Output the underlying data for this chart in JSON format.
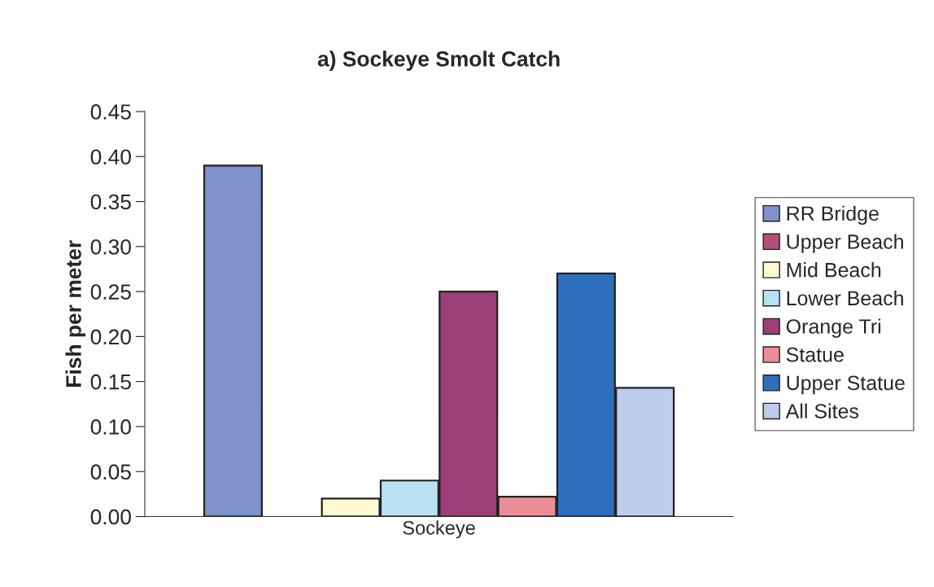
{
  "chart_data": {
    "type": "bar",
    "title": "a) Sockeye Smolt Catch",
    "ylabel": "Fish per meter",
    "categories": [
      "Sockeye"
    ],
    "series": [
      {
        "name": "RR Bridge",
        "color": "#7f92cc",
        "values": [
          0.39
        ]
      },
      {
        "name": "Upper Beach",
        "color": "#b24f7a",
        "values": [
          0
        ]
      },
      {
        "name": "Mid Beach",
        "color": "#fbf8d2",
        "values": [
          0.02
        ]
      },
      {
        "name": "Lower Beach",
        "color": "#b8e1f3",
        "values": [
          0.04
        ]
      },
      {
        "name": "Orange Tri",
        "color": "#9c3f78",
        "values": [
          0.25
        ]
      },
      {
        "name": "Statue",
        "color": "#ec8e97",
        "values": [
          0.022
        ]
      },
      {
        "name": "Upper Statue",
        "color": "#2d6fbd",
        "values": [
          0.27
        ]
      },
      {
        "name": "All Sites",
        "color": "#bfcdec",
        "values": [
          0.143
        ]
      }
    ],
    "ylim": [
      0,
      0.45
    ],
    "yticks": [
      {
        "value": 0,
        "label": "0.00"
      },
      {
        "value": 0.05,
        "label": "0.05"
      },
      {
        "value": 0.1,
        "label": "0.10"
      },
      {
        "value": 0.15,
        "label": "0.15"
      },
      {
        "value": 0.2,
        "label": "0.20"
      },
      {
        "value": 0.25,
        "label": "0.25"
      },
      {
        "value": 0.3,
        "label": "0.30"
      },
      {
        "value": 0.35,
        "label": "0.35"
      },
      {
        "value": 0.4,
        "label": "0.40"
      },
      {
        "value": 0.45,
        "label": "0.45"
      }
    ],
    "grid": false,
    "legend": "right"
  }
}
